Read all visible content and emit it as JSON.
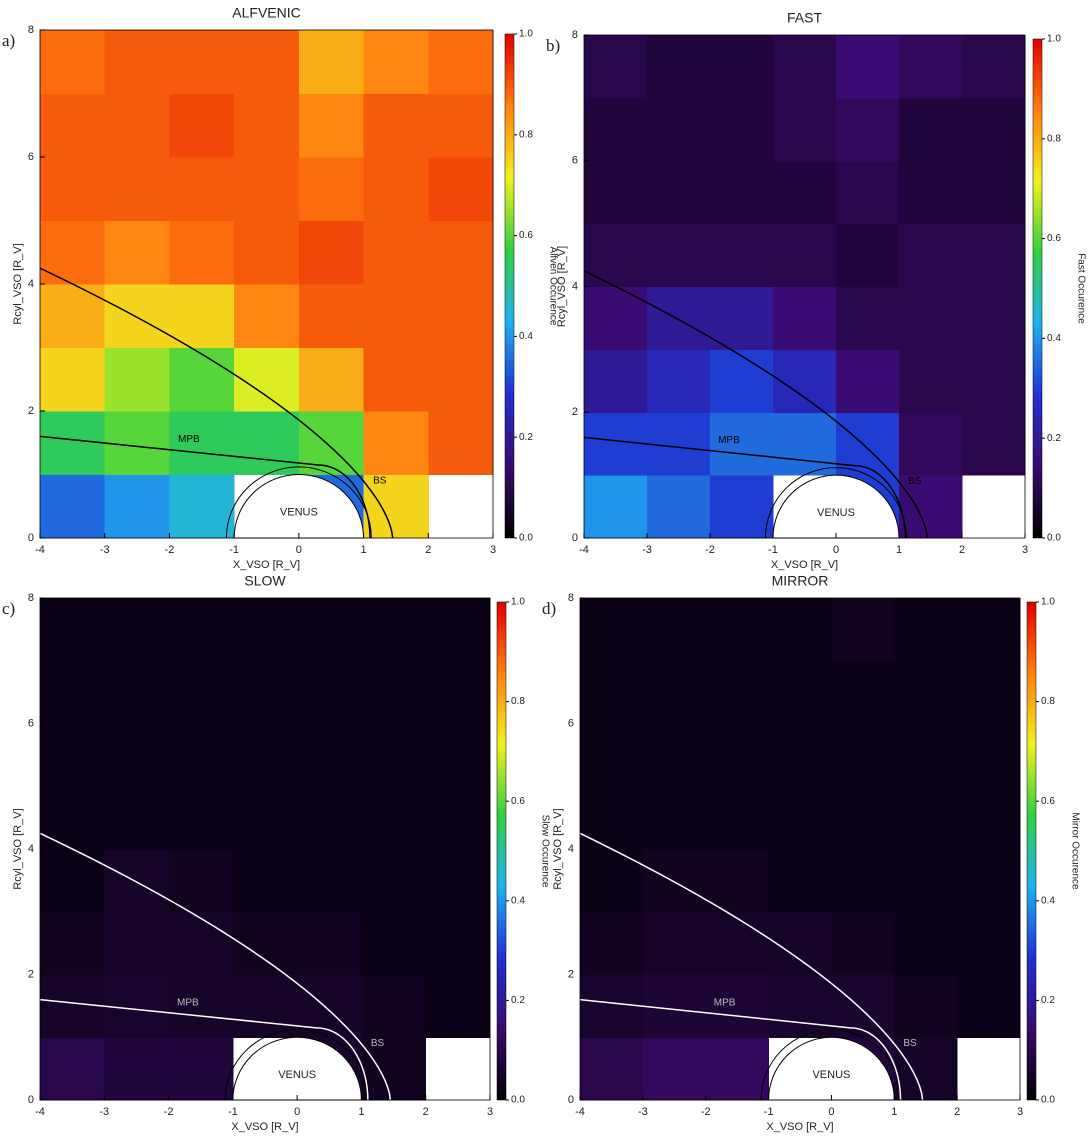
{
  "chart_data": [
    {
      "type": "heatmap",
      "panel_label": "a)",
      "title": "ALFVENIC",
      "x_label": "X_VSO [R_V]",
      "y_label": "Rcyl_VSO [R_V]",
      "colorbar_label": "Alfven Occurence",
      "labels": {
        "mpb": "MPB",
        "bs": "BS",
        "planet": "VENUS"
      },
      "boundary_color": "#000000",
      "x_bins": [
        -4,
        -3,
        -2,
        -1,
        0,
        1,
        2,
        3
      ],
      "y_bins": [
        0,
        1,
        2,
        3,
        4,
        5,
        6,
        7,
        8
      ],
      "values": [
        [
          0.35,
          0.4,
          0.45,
          null,
          0.35,
          0.75,
          null
        ],
        [
          0.55,
          0.6,
          0.55,
          0.55,
          0.6,
          0.85,
          0.9
        ],
        [
          0.75,
          0.65,
          0.6,
          0.7,
          0.8,
          0.9,
          0.9
        ],
        [
          0.8,
          0.75,
          0.75,
          0.85,
          0.9,
          0.9,
          0.9
        ],
        [
          0.88,
          0.85,
          0.88,
          0.9,
          0.92,
          0.9,
          0.9
        ],
        [
          0.9,
          0.9,
          0.9,
          0.9,
          0.88,
          0.9,
          0.92
        ],
        [
          0.9,
          0.9,
          0.92,
          0.9,
          0.85,
          0.9,
          0.9
        ],
        [
          0.88,
          0.9,
          0.9,
          0.9,
          0.8,
          0.85,
          0.88
        ]
      ],
      "xlim": [
        -4,
        3
      ],
      "ylim": [
        0,
        8
      ],
      "xticks": [
        -4,
        -3,
        -2,
        -1,
        0,
        1,
        2,
        3
      ],
      "yticks": [
        0,
        2,
        4,
        6,
        8
      ],
      "clim": [
        0,
        1
      ],
      "cticks": [
        {
          "value": 0,
          "label": "0.0"
        },
        {
          "value": 0.2,
          "label": "0.2"
        },
        {
          "value": 0.4,
          "label": "0.4"
        },
        {
          "value": 0.6,
          "label": "0.6"
        },
        {
          "value": 0.8,
          "label": "0.8"
        },
        {
          "value": 1,
          "label": "1.0"
        }
      ],
      "colormap": [
        "#000000",
        "#3b0a6e",
        "#2030d0",
        "#20b0f0",
        "#30d040",
        "#f0f020",
        "#ff8010",
        "#e00000"
      ]
    },
    {
      "type": "heatmap",
      "panel_label": "b)",
      "title": "FAST",
      "x_label": "X_VSO [R_V]",
      "y_label": "Rcyl_VSO [R_V]",
      "colorbar_label": "Fast Occurence",
      "labels": {
        "mpb": "MPB",
        "bs": "BS",
        "planet": "VENUS"
      },
      "boundary_color": "#000000",
      "x_bins": [
        -4,
        -3,
        -2,
        -1,
        0,
        1,
        2,
        3
      ],
      "y_bins": [
        0,
        1,
        2,
        3,
        4,
        5,
        6,
        7,
        8
      ],
      "values": [
        [
          0.4,
          0.35,
          0.3,
          null,
          0.3,
          0.15,
          null
        ],
        [
          0.3,
          0.3,
          0.35,
          0.35,
          0.3,
          0.12,
          0.1
        ],
        [
          0.2,
          0.25,
          0.3,
          0.25,
          0.15,
          0.1,
          0.1
        ],
        [
          0.15,
          0.2,
          0.2,
          0.15,
          0.1,
          0.1,
          0.1
        ],
        [
          0.1,
          0.1,
          0.1,
          0.1,
          0.08,
          0.1,
          0.1
        ],
        [
          0.08,
          0.08,
          0.08,
          0.08,
          0.1,
          0.08,
          0.08
        ],
        [
          0.08,
          0.08,
          0.08,
          0.1,
          0.12,
          0.08,
          0.08
        ],
        [
          0.1,
          0.08,
          0.08,
          0.1,
          0.15,
          0.12,
          0.1
        ]
      ],
      "xlim": [
        -4,
        3
      ],
      "ylim": [
        0,
        8
      ],
      "xticks": [
        -4,
        -3,
        -2,
        -1,
        0,
        1,
        2,
        3
      ],
      "yticks": [
        0,
        2,
        4,
        6,
        8
      ],
      "clim": [
        0,
        1
      ],
      "cticks": [
        {
          "value": 0,
          "label": "0.0"
        },
        {
          "value": 0.2,
          "label": "0.2"
        },
        {
          "value": 0.4,
          "label": "0.4"
        },
        {
          "value": 0.6,
          "label": "0.6"
        },
        {
          "value": 0.8,
          "label": "0.8"
        },
        {
          "value": 1,
          "label": "1.0"
        }
      ],
      "colormap": [
        "#000000",
        "#3b0a6e",
        "#2030d0",
        "#20b0f0",
        "#30d040",
        "#f0f020",
        "#ff8010",
        "#e00000"
      ]
    },
    {
      "type": "heatmap",
      "panel_label": "c)",
      "title": "SLOW",
      "x_label": "X_VSO [R_V]",
      "y_label": "Rcyl_VSO [R_V]",
      "colorbar_label": "Slow Occurence",
      "labels": {
        "mpb": "MPB",
        "bs": "BS",
        "planet": "VENUS"
      },
      "boundary_color": "#ffffff",
      "x_bins": [
        -4,
        -3,
        -2,
        -1,
        0,
        1,
        2,
        3
      ],
      "y_bins": [
        0,
        1,
        2,
        3,
        4,
        5,
        6,
        7,
        8
      ],
      "values": [
        [
          0.1,
          0.08,
          0.08,
          null,
          0.06,
          0.04,
          null
        ],
        [
          0.05,
          0.06,
          0.05,
          0.05,
          0.05,
          0.04,
          0.03
        ],
        [
          0.04,
          0.05,
          0.05,
          0.04,
          0.04,
          0.03,
          0.03
        ],
        [
          0.03,
          0.05,
          0.04,
          0.03,
          0.03,
          0.03,
          0.03
        ],
        [
          0.03,
          0.03,
          0.03,
          0.03,
          0.03,
          0.03,
          0.03
        ],
        [
          0.03,
          0.03,
          0.03,
          0.03,
          0.03,
          0.03,
          0.03
        ],
        [
          0.03,
          0.03,
          0.03,
          0.03,
          0.03,
          0.03,
          0.03
        ],
        [
          0.03,
          0.03,
          0.03,
          0.03,
          0.03,
          0.03,
          0.03
        ]
      ],
      "xlim": [
        -4,
        3
      ],
      "ylim": [
        0,
        8
      ],
      "xticks": [
        -4,
        -3,
        -2,
        -1,
        0,
        1,
        2,
        3
      ],
      "yticks": [
        0,
        2,
        4,
        6,
        8
      ],
      "clim": [
        0,
        1
      ],
      "cticks": [
        {
          "value": 0,
          "label": "0.0"
        },
        {
          "value": 0.2,
          "label": "0.2"
        },
        {
          "value": 0.4,
          "label": "0.4"
        },
        {
          "value": 0.6,
          "label": "0.6"
        },
        {
          "value": 0.8,
          "label": "0.8"
        },
        {
          "value": 1,
          "label": "1.0"
        }
      ],
      "colormap": [
        "#000000",
        "#3b0a6e",
        "#2030d0",
        "#20b0f0",
        "#30d040",
        "#f0f020",
        "#ff8010",
        "#e00000"
      ]
    },
    {
      "type": "heatmap",
      "panel_label": "d)",
      "title": "MIRROR",
      "x_label": "X_VSO [R_V]",
      "y_label": "Rcyl_VSO [R_V]",
      "colorbar_label": "Mirror Occurence",
      "labels": {
        "mpb": "MPB",
        "bs": "BS",
        "planet": "VENUS"
      },
      "boundary_color": "#ffffff",
      "x_bins": [
        -4,
        -3,
        -2,
        -1,
        0,
        1,
        2,
        3
      ],
      "y_bins": [
        0,
        1,
        2,
        3,
        4,
        5,
        6,
        7,
        8
      ],
      "values": [
        [
          0.1,
          0.12,
          0.12,
          null,
          0.08,
          0.05,
          null
        ],
        [
          0.06,
          0.07,
          0.07,
          0.06,
          0.06,
          0.04,
          0.03
        ],
        [
          0.04,
          0.05,
          0.05,
          0.05,
          0.04,
          0.03,
          0.03
        ],
        [
          0.03,
          0.04,
          0.04,
          0.03,
          0.03,
          0.03,
          0.03
        ],
        [
          0.03,
          0.03,
          0.03,
          0.03,
          0.03,
          0.03,
          0.03
        ],
        [
          0.03,
          0.03,
          0.03,
          0.03,
          0.03,
          0.03,
          0.03
        ],
        [
          0.03,
          0.03,
          0.03,
          0.03,
          0.03,
          0.03,
          0.03
        ],
        [
          0.03,
          0.03,
          0.03,
          0.03,
          0.04,
          0.03,
          0.03
        ]
      ],
      "xlim": [
        -4,
        3
      ],
      "ylim": [
        0,
        8
      ],
      "xticks": [
        -4,
        -3,
        -2,
        -1,
        0,
        1,
        2,
        3
      ],
      "yticks": [
        0,
        2,
        4,
        6,
        8
      ],
      "clim": [
        0,
        1
      ],
      "cticks": [
        {
          "value": 0,
          "label": "0.0"
        },
        {
          "value": 0.2,
          "label": "0.2"
        },
        {
          "value": 0.4,
          "label": "0.4"
        },
        {
          "value": 0.6,
          "label": "0.6"
        },
        {
          "value": 0.8,
          "label": "0.8"
        },
        {
          "value": 1,
          "label": "1.0"
        }
      ],
      "colormap": [
        "#000000",
        "#3b0a6e",
        "#2030d0",
        "#20b0f0",
        "#30d040",
        "#f0f020",
        "#ff8010",
        "#e00000"
      ]
    }
  ]
}
